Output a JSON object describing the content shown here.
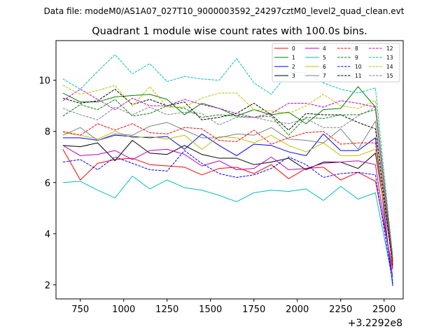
{
  "suptitle": "Data file: modeM0/AS1A07_027T10_9000003592_24297cztM0_level2_quad_clean.evt",
  "chart_data": {
    "type": "line",
    "title": "Quadrant 1 module wise count rates with 100.0s bins.",
    "xlabel": "",
    "ylabel": "",
    "x_offset_label": "+3.2292e8",
    "xlim": [
      610,
      2610
    ],
    "ylim": [
      1.45,
      11.55
    ],
    "xticks": [
      750,
      1000,
      1250,
      1500,
      1750,
      2000,
      2250,
      2500
    ],
    "xtick_labels": [
      "750",
      "1000",
      "1250",
      "1500",
      "1750",
      "2000",
      "2250",
      "2500"
    ],
    "yticks": [
      2,
      4,
      6,
      8,
      10
    ],
    "ytick_labels": [
      "2",
      "4",
      "6",
      "8",
      "10"
    ],
    "grid": false,
    "legend_position": "top-right",
    "legend_columns": 4,
    "x": [
      650,
      750,
      850,
      950,
      1050,
      1150,
      1250,
      1350,
      1450,
      1550,
      1650,
      1750,
      1850,
      1950,
      2050,
      2150,
      2250,
      2350,
      2450,
      2550
    ],
    "series": [
      {
        "name": "0",
        "color": "#ff0000",
        "dash": "solid",
        "values": [
          7.3,
          6.1,
          6.75,
          6.9,
          6.95,
          6.7,
          6.65,
          6.6,
          6.3,
          6.55,
          6.6,
          6.35,
          6.7,
          6.15,
          6.55,
          6.6,
          6.1,
          6.4,
          6.05,
          2.6
        ]
      },
      {
        "name": "1",
        "color": "#008000",
        "dash": "solid",
        "values": [
          9.5,
          9.15,
          9.15,
          9.35,
          9.4,
          9.45,
          9.25,
          8.65,
          9.1,
          8.9,
          8.6,
          8.85,
          8.65,
          8.75,
          8.3,
          8.85,
          8.9,
          9.75,
          8.95,
          2.9
        ]
      },
      {
        "name": "2",
        "color": "#0000ff",
        "dash": "solid",
        "values": [
          7.75,
          7.75,
          7.65,
          7.85,
          7.8,
          7.75,
          7.8,
          7.3,
          7.9,
          7.45,
          7.05,
          7.5,
          7.45,
          7.2,
          7.05,
          7.9,
          7.25,
          7.25,
          7.75,
          1.95
        ]
      },
      {
        "name": "3",
        "color": "#000000",
        "dash": "solid",
        "values": [
          7.45,
          7.4,
          7.55,
          6.85,
          7.65,
          7.15,
          7.1,
          7.45,
          7.1,
          6.95,
          6.95,
          6.7,
          6.8,
          6.95,
          6.5,
          6.8,
          6.8,
          6.55,
          7.15,
          2.9
        ]
      },
      {
        "name": "4",
        "color": "#c000c0",
        "dash": "solid",
        "values": [
          7.45,
          7.05,
          7.1,
          7.25,
          6.9,
          7.25,
          7.3,
          7.1,
          6.65,
          6.85,
          6.5,
          6.55,
          7.0,
          6.5,
          6.55,
          6.75,
          6.8,
          6.85,
          6.7,
          2.3
        ]
      },
      {
        "name": "5",
        "color": "#00bfbf",
        "dash": "solid",
        "values": [
          6.0,
          6.05,
          5.7,
          5.4,
          6.25,
          5.75,
          6.1,
          5.8,
          5.7,
          5.5,
          5.25,
          5.6,
          5.7,
          5.65,
          5.75,
          5.3,
          5.85,
          5.35,
          5.6,
          2.15
        ]
      },
      {
        "name": "6",
        "color": "#bfbf00",
        "dash": "solid",
        "values": [
          7.95,
          7.85,
          7.7,
          8.0,
          7.75,
          7.8,
          7.7,
          7.85,
          7.3,
          7.8,
          7.75,
          7.55,
          7.85,
          7.45,
          7.2,
          7.55,
          7.05,
          7.05,
          7.3,
          2.8
        ]
      },
      {
        "name": "7",
        "color": "#808080",
        "dash": "solid",
        "values": [
          7.85,
          8.15,
          7.65,
          7.9,
          7.85,
          8.2,
          8.35,
          8.05,
          7.75,
          7.75,
          7.9,
          7.85,
          8.15,
          7.7,
          7.65,
          7.55,
          8.1,
          7.3,
          8.4,
          2.7
        ]
      },
      {
        "name": "8",
        "color": "#ff0000",
        "dash": "dashed",
        "values": [
          8.0,
          7.85,
          8.3,
          8.05,
          8.3,
          7.95,
          7.9,
          8.15,
          8.1,
          7.65,
          7.6,
          8.05,
          7.5,
          7.75,
          7.95,
          8.0,
          7.5,
          7.55,
          7.55,
          2.9
        ]
      },
      {
        "name": "9",
        "color": "#008000",
        "dash": "dashed",
        "values": [
          8.6,
          9.05,
          8.85,
          9.25,
          8.6,
          8.7,
          9.0,
          8.9,
          8.55,
          8.65,
          8.6,
          8.55,
          8.6,
          7.85,
          8.55,
          8.5,
          8.65,
          8.65,
          8.85,
          3.0
        ]
      },
      {
        "name": "10",
        "color": "#0000ff",
        "dash": "dashed",
        "values": [
          6.8,
          6.9,
          6.5,
          7.0,
          6.75,
          6.5,
          6.45,
          7.25,
          6.75,
          6.35,
          6.2,
          6.3,
          6.55,
          7.0,
          6.7,
          6.2,
          6.35,
          6.4,
          6.3,
          2.05
        ]
      },
      {
        "name": "11",
        "color": "#000000",
        "dash": "dashed",
        "values": [
          9.3,
          9.1,
          9.2,
          9.65,
          9.05,
          9.25,
          9.0,
          9.15,
          8.45,
          8.55,
          8.7,
          9.1,
          8.65,
          8.05,
          8.7,
          8.65,
          8.65,
          8.35,
          8.1,
          2.7
        ]
      },
      {
        "name": "12",
        "color": "#c000c0",
        "dash": "dashed",
        "values": [
          9.2,
          9.65,
          9.25,
          8.85,
          9.3,
          9.0,
          9.0,
          9.25,
          9.05,
          8.9,
          8.7,
          8.55,
          8.7,
          9.1,
          9.1,
          8.95,
          9.2,
          9.1,
          8.95,
          2.8
        ]
      },
      {
        "name": "13",
        "color": "#00bfbf",
        "dash": "dashed",
        "values": [
          10.05,
          9.65,
          10.35,
          11.0,
          10.25,
          10.65,
          9.95,
          10.15,
          10.05,
          10.0,
          10.85,
          9.9,
          9.45,
          10.3,
          10.3,
          9.9,
          9.65,
          9.5,
          9.7,
          3.05
        ]
      },
      {
        "name": "14",
        "color": "#bfbf00",
        "dash": "dashed",
        "values": [
          9.8,
          9.45,
          9.6,
          9.8,
          9.0,
          9.75,
          8.95,
          8.95,
          9.3,
          9.5,
          9.5,
          8.85,
          8.8,
          8.7,
          9.0,
          9.45,
          9.0,
          8.9,
          9.2,
          3.1
        ]
      },
      {
        "name": "15",
        "color": "#808080",
        "dash": "dashed",
        "values": [
          8.9,
          8.65,
          8.45,
          8.95,
          8.65,
          8.95,
          8.65,
          8.75,
          8.7,
          8.25,
          8.55,
          8.55,
          8.4,
          8.3,
          8.5,
          8.15,
          8.15,
          8.6,
          8.95,
          3.15
        ]
      }
    ]
  }
}
